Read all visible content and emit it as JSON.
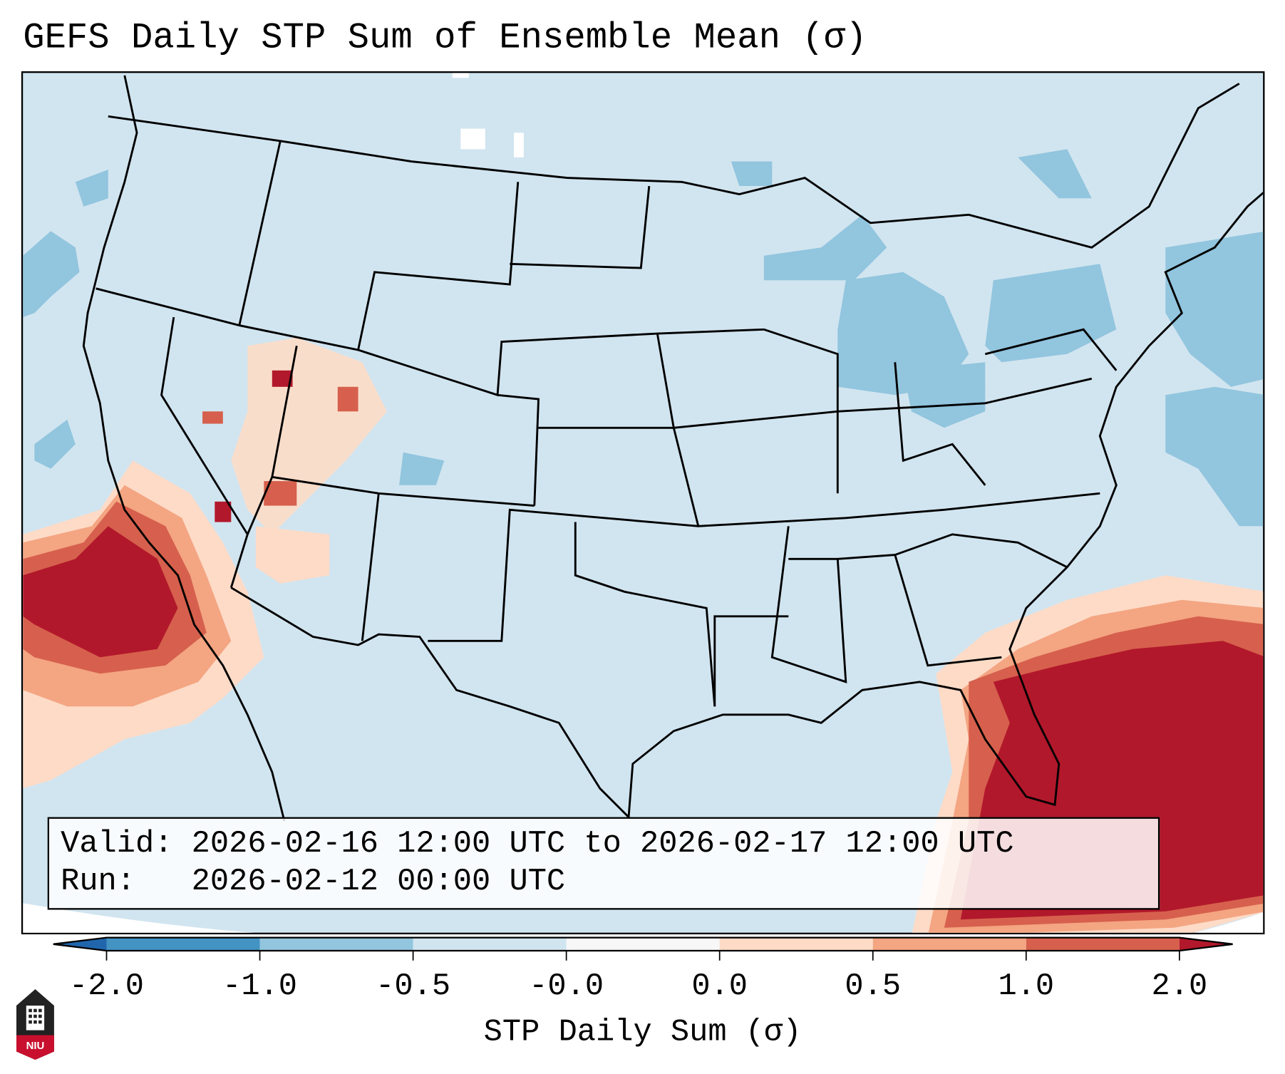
{
  "title": "GEFS Daily STP Sum of Ensemble Mean (σ)",
  "info": {
    "valid_line": "Valid: 2026-02-16 12:00 UTC to 2026-02-17 12:00 UTC",
    "run_line": "Run:   2026-02-12 00:00 UTC"
  },
  "logo_text": "NIU",
  "chart_data": {
    "type": "heatmap",
    "title": "GEFS Daily STP Sum of Ensemble Mean (σ)",
    "region": "Continental United States",
    "colorbar": {
      "label": "STP Daily Sum (σ)",
      "ticks": [
        "-2.0",
        "-1.0",
        "-0.5",
        "-0.0",
        "0.0",
        "0.5",
        "1.0",
        "2.0"
      ],
      "extend": "both",
      "colors": [
        "#2166ac",
        "#4393c3",
        "#92c5de",
        "#d1e5f0",
        "#f7f7f7",
        "#fddbc7",
        "#f4a582",
        "#d6604d",
        "#b2182b"
      ]
    },
    "features": [
      {
        "area": "Southern California / Eastern Pacific",
        "value_range": [
          0.5,
          2.0
        ]
      },
      {
        "area": "Great Basin / Utah / Arizona",
        "value_range": [
          0.0,
          2.0
        ]
      },
      {
        "area": "Florida / Gulf / Western Atlantic",
        "value_range": [
          0.5,
          2.0
        ]
      },
      {
        "area": "Great Lakes / Northeast / Atlantic",
        "value_range": [
          -1.0,
          -0.5
        ]
      }
    ]
  }
}
